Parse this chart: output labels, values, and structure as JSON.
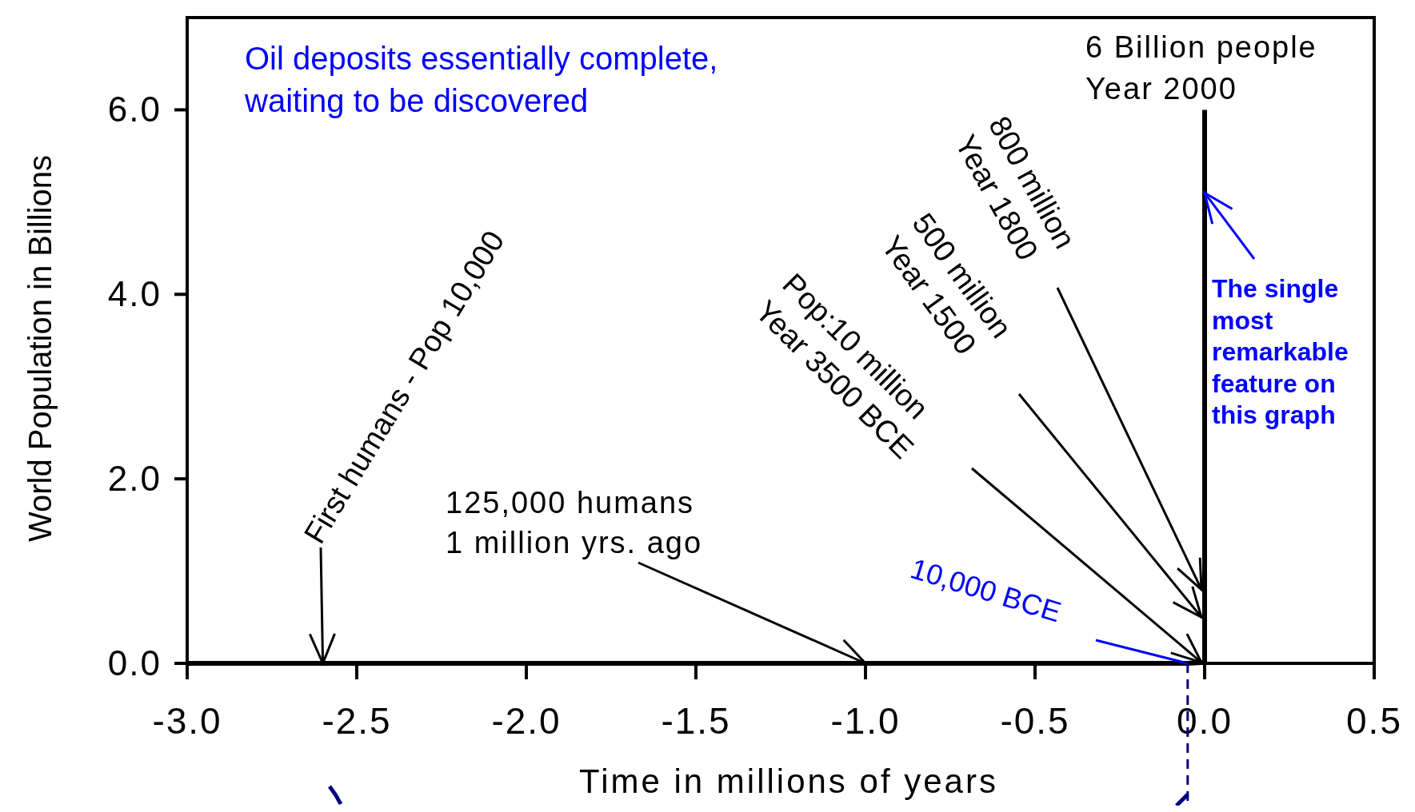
{
  "chart_data": {
    "type": "line",
    "xlabel": "Time in millions of years",
    "ylabel": "World Population in Billions",
    "x": [
      -3,
      -2.6,
      -1,
      -0.05,
      0,
      0,
      0,
      0,
      0
    ],
    "series": [
      {
        "color": "#000000",
        "values": [
          0,
          0,
          0,
          0,
          0.01,
          0.5,
          0.8,
          5.1,
          6
        ]
      }
    ],
    "xlim": [
      -3,
      0.5
    ],
    "ylim": [
      0,
      7
    ],
    "xticks": [
      {
        "value": -3,
        "label": "-3.0"
      },
      {
        "value": -2.5,
        "label": "-2.5"
      },
      {
        "value": -2,
        "label": "-2.0"
      },
      {
        "value": -1.5,
        "label": "-1.5"
      },
      {
        "value": -1,
        "label": "-1.0"
      },
      {
        "value": -0.5,
        "label": "-0.5"
      },
      {
        "value": 0,
        "label": "0.0"
      },
      {
        "value": 0.5,
        "label": "0.5"
      }
    ],
    "yticks": [
      {
        "value": 0,
        "label": "0.0"
      },
      {
        "value": 2,
        "label": "2.0"
      },
      {
        "value": 4,
        "label": "4.0"
      },
      {
        "value": 6,
        "label": "6.0"
      }
    ],
    "grid": false,
    "marker": "none",
    "line_style": "solid",
    "annotations": [
      "Oil deposits essentially complete,\nwaiting to be discovered",
      {
        "text": "6 Billion people\nYear 2000",
        "x": 0,
        "y": 6
      },
      {
        "text": "800 million\nYear 1800",
        "x": 0,
        "y": 0.8
      },
      {
        "text": "500 million\nYear 1500",
        "x": 0,
        "y": 0.5
      },
      {
        "text": "Pop:10 million\nYear 3500 BCE",
        "x": 0,
        "y": 0.01
      },
      {
        "text": "125,000 humans\n1 million yrs. ago",
        "x": -1,
        "y": 0
      },
      {
        "text": "First humans - Pop 10,000",
        "x": -2.6,
        "y": 0
      },
      {
        "text": "10,000 BCE",
        "x": -0.05,
        "y": 0
      },
      {
        "text": "The single\nmost\nremarkable\nfeature on\nthis graph",
        "x": 0,
        "y": 5.1
      }
    ]
  }
}
